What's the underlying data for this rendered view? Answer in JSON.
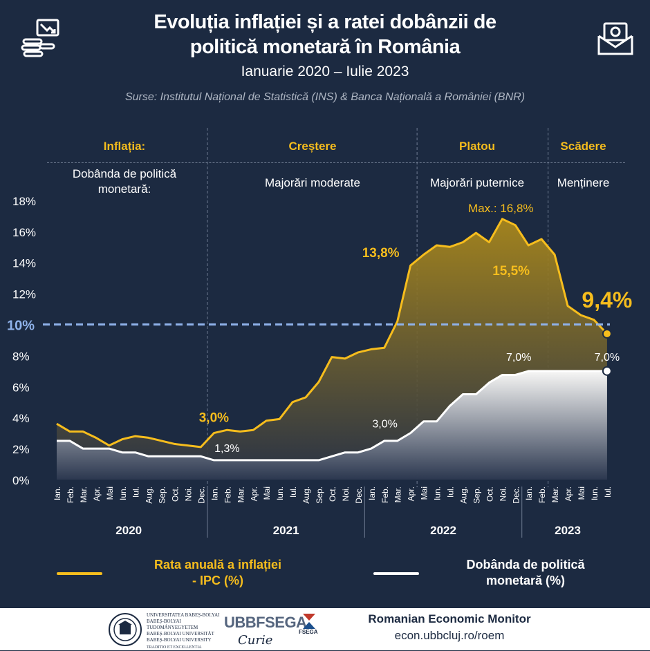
{
  "header": {
    "title_line1": "Evoluția inflației și a ratei dobânzii de",
    "title_line2": "politică monetară în România",
    "period": "Ianuarie 2020 – Iulie 2023",
    "sources": "Surse: Institutul Național de Statistică (INS) & Banca Națională a României (BNR)"
  },
  "phases": {
    "inflation_label": "Inflația:",
    "policy_label": "Dobânda de politică monetară:",
    "items": [
      {
        "inflation": "Creștere",
        "policy": "Majorări moderate"
      },
      {
        "inflation": "Platou",
        "policy": "Majorări puternice"
      },
      {
        "inflation": "Scădere",
        "policy": "Menținere"
      }
    ]
  },
  "colors": {
    "background": "#1c2a41",
    "inflation": "#f6bd1d",
    "policy_rate": "#ffffff",
    "threshold": "#8fb2ea",
    "text": "#ffffff"
  },
  "chart_data": {
    "type": "area",
    "x": [
      "Ian.",
      "Feb.",
      "Mar.",
      "Apr.",
      "Mai",
      "Iun.",
      "Iul.",
      "Aug.",
      "Sep.",
      "Oct.",
      "Noi.",
      "Dec.",
      "Ian.",
      "Feb.",
      "Mar.",
      "Apr.",
      "Mai",
      "Iun.",
      "Iul.",
      "Aug.",
      "Sep.",
      "Oct.",
      "Noi.",
      "Dec.",
      "Ian.",
      "Feb.",
      "Mar.",
      "Apr.",
      "Mai",
      "Iun.",
      "Iul.",
      "Aug.",
      "Sep.",
      "Oct.",
      "Noi.",
      "Dec.",
      "Ian.",
      "Feb.",
      "Mar.",
      "Apr.",
      "Mai",
      "Iun.",
      "Iul."
    ],
    "years": [
      "2020",
      "2021",
      "2022",
      "2023"
    ],
    "ylim": [
      0,
      18
    ],
    "yticks": [
      "0%",
      "2%",
      "4%",
      "6%",
      "8%",
      "10%",
      "12%",
      "14%",
      "16%",
      "18%"
    ],
    "threshold": {
      "value": 10,
      "label": "10%"
    },
    "series": [
      {
        "name": "Rata anuală a inflației - IPC (%)",
        "values": [
          3.6,
          3.1,
          3.1,
          2.7,
          2.2,
          2.6,
          2.8,
          2.7,
          2.5,
          2.3,
          2.2,
          2.1,
          3.0,
          3.2,
          3.1,
          3.2,
          3.8,
          3.9,
          5.0,
          5.3,
          6.3,
          7.9,
          7.8,
          8.2,
          8.4,
          8.5,
          10.2,
          13.8,
          14.5,
          15.1,
          15.0,
          15.3,
          15.9,
          15.3,
          16.8,
          16.4,
          15.1,
          15.5,
          14.5,
          11.2,
          10.6,
          10.3,
          9.4
        ]
      },
      {
        "name": "Dobânda de politică monetară (%)",
        "values": [
          2.5,
          2.5,
          2.0,
          2.0,
          2.0,
          1.75,
          1.75,
          1.5,
          1.5,
          1.5,
          1.5,
          1.5,
          1.25,
          1.25,
          1.25,
          1.25,
          1.25,
          1.25,
          1.25,
          1.25,
          1.25,
          1.5,
          1.75,
          1.75,
          2.0,
          2.5,
          2.5,
          3.0,
          3.75,
          3.75,
          4.75,
          5.5,
          5.5,
          6.25,
          6.75,
          6.75,
          7.0,
          7.0,
          7.0,
          7.0,
          7.0,
          7.0,
          7.0
        ]
      }
    ],
    "annotations": [
      {
        "text": "3,0%",
        "index": 12,
        "series": 0
      },
      {
        "text": "13,8%",
        "index": 27,
        "series": 0
      },
      {
        "text": "Max.: 16,8%",
        "index": 34,
        "series": 0
      },
      {
        "text": "15,5%",
        "index": 37,
        "series": 0
      },
      {
        "text": "9,4%",
        "index": 42,
        "series": 0
      },
      {
        "text": "1,3%",
        "index": 12,
        "series": 1
      },
      {
        "text": "3,0%",
        "index": 27,
        "series": 1
      },
      {
        "text": "7,0%",
        "index": 36,
        "series": 1
      },
      {
        "text": "7,0%",
        "index": 42,
        "series": 1
      }
    ]
  },
  "legend": {
    "inflation_line1": "Rata anuală a inflației",
    "inflation_line2": "- IPC (%)",
    "policy_line1": "Dobânda de politică",
    "policy_line2": "monetară (%)"
  },
  "footer": {
    "monitor_title": "Romanian Economic Monitor",
    "url": "econ.ubbcluj.ro/roem",
    "ubb_name_1": "UNIVERSITATEA BABEȘ-BOLYAI",
    "ubb_name_2": "BABEȘ-BOLYAI TUDOMÁNYEGYETEM",
    "ubb_name_3": "BABEȘ-BOLYAI UNIVERSITÄT",
    "ubb_name_4": "BABEȘ-BOLYAI UNIVERSITY",
    "ubb_motto": "TRADITIO ET EXCELLENTIA",
    "fsega_logo": "UBBFSEGA",
    "fsega_small": "FSEGA",
    "signature": "Curie"
  }
}
